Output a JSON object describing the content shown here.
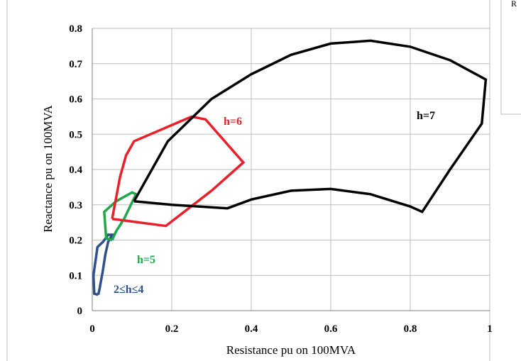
{
  "chart_data": {
    "type": "line",
    "xlabel": "Resistance pu on 100MVA",
    "ylabel": "Reactance pu on 100MVA",
    "xlim": [
      0,
      1
    ],
    "ylim": [
      0,
      0.8
    ],
    "x_ticks": [
      "0",
      "0.2",
      "0.4",
      "0.6",
      "0.8",
      "1"
    ],
    "y_ticks": [
      "0",
      "0.1",
      "0.2",
      "0.3",
      "0.4",
      "0.5",
      "0.6",
      "0.7",
      "0.8"
    ],
    "grid": true,
    "corner_text": "R",
    "series": [
      {
        "name": "2≤h≤4",
        "color": "#2F4F8F",
        "points": [
          [
            0.015,
            0.045
          ],
          [
            0.005,
            0.048
          ],
          [
            0.003,
            0.1
          ],
          [
            0.013,
            0.18
          ],
          [
            0.027,
            0.195
          ],
          [
            0.04,
            0.215
          ],
          [
            0.05,
            0.215
          ],
          [
            0.04,
            0.195
          ],
          [
            0.033,
            0.16
          ],
          [
            0.026,
            0.11
          ],
          [
            0.018,
            0.06
          ],
          [
            0.015,
            0.045
          ]
        ]
      },
      {
        "name": "h=5",
        "color": "#1FA74A",
        "points": [
          [
            0.05,
            0.2
          ],
          [
            0.035,
            0.205
          ],
          [
            0.03,
            0.28
          ],
          [
            0.06,
            0.31
          ],
          [
            0.1,
            0.335
          ],
          [
            0.11,
            0.33
          ],
          [
            0.08,
            0.26
          ],
          [
            0.06,
            0.225
          ],
          [
            0.05,
            0.2
          ]
        ]
      },
      {
        "name": "h=6",
        "color": "#E8202A",
        "points": [
          [
            0.05,
            0.26
          ],
          [
            0.07,
            0.38
          ],
          [
            0.085,
            0.44
          ],
          [
            0.105,
            0.48
          ],
          [
            0.25,
            0.55
          ],
          [
            0.285,
            0.542
          ],
          [
            0.38,
            0.42
          ],
          [
            0.3,
            0.34
          ],
          [
            0.185,
            0.24
          ],
          [
            0.05,
            0.26
          ]
        ]
      },
      {
        "name": "h=7",
        "color": "#000000",
        "points": [
          [
            0.105,
            0.31
          ],
          [
            0.19,
            0.48
          ],
          [
            0.3,
            0.6
          ],
          [
            0.4,
            0.67
          ],
          [
            0.5,
            0.725
          ],
          [
            0.6,
            0.757
          ],
          [
            0.7,
            0.765
          ],
          [
            0.8,
            0.748
          ],
          [
            0.9,
            0.71
          ],
          [
            0.99,
            0.655
          ],
          [
            0.98,
            0.53
          ],
          [
            0.9,
            0.4
          ],
          [
            0.83,
            0.28
          ],
          [
            0.8,
            0.295
          ],
          [
            0.7,
            0.33
          ],
          [
            0.6,
            0.345
          ],
          [
            0.5,
            0.34
          ],
          [
            0.4,
            0.315
          ],
          [
            0.34,
            0.29
          ],
          [
            0.2,
            0.3
          ],
          [
            0.105,
            0.31
          ]
        ]
      }
    ]
  }
}
